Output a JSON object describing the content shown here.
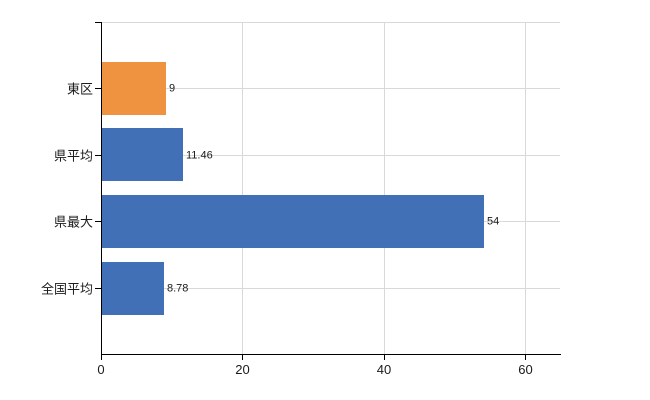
{
  "chart_data": {
    "type": "bar",
    "orientation": "horizontal",
    "title": "",
    "xlabel": "",
    "ylabel": "",
    "categories": [
      "東区",
      "県平均",
      "県最大",
      "全国平均"
    ],
    "values": [
      9,
      11.46,
      54,
      8.78
    ],
    "value_labels": [
      "9",
      "11.46",
      "54",
      "8.78"
    ],
    "bar_colors": [
      "#EF9340",
      "#4170B7",
      "#4170B7",
      "#4170B7"
    ],
    "x_ticks": [
      0,
      20,
      40,
      60
    ],
    "x_tick_labels": [
      "0",
      "20",
      "40",
      "60"
    ],
    "xlim": [
      0,
      64.9
    ],
    "grid": true,
    "legend": false,
    "colors": {
      "bar_orange": "#EF9340",
      "bar_blue": "#4170B7",
      "grid": "#D9D9D9",
      "axis": "#000000",
      "text": "#1B1B1B",
      "background": "#FFFFFF"
    }
  }
}
